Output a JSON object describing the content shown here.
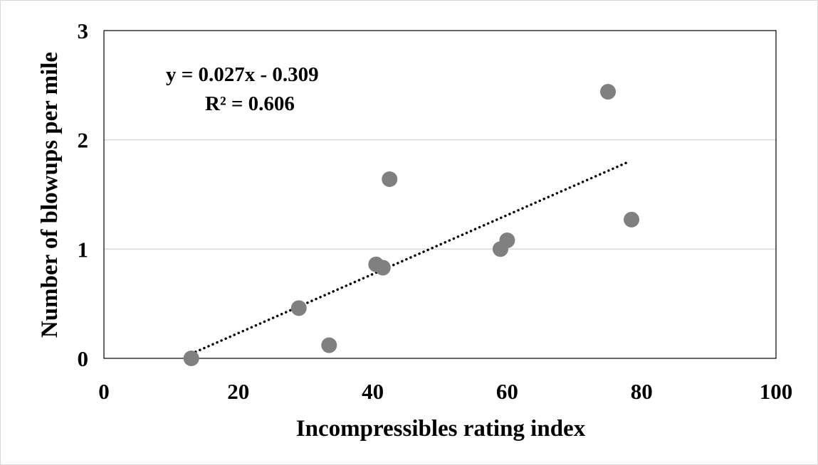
{
  "chart_data": {
    "type": "scatter",
    "title": "",
    "xlabel": "Incompressibles rating index",
    "ylabel": "Number of blowups per mile",
    "xlim": [
      0,
      100
    ],
    "ylim": [
      0,
      3
    ],
    "x_ticks": [
      "0",
      "20",
      "40",
      "60",
      "80",
      "100"
    ],
    "y_ticks": [
      "0",
      "1",
      "2",
      "3"
    ],
    "grid": "horizontal",
    "series": [
      {
        "points": [
          {
            "x": 13,
            "y": 0.0
          },
          {
            "x": 29,
            "y": 0.46
          },
          {
            "x": 33.5,
            "y": 0.12
          },
          {
            "x": 40.5,
            "y": 0.86
          },
          {
            "x": 41.5,
            "y": 0.83
          },
          {
            "x": 42.5,
            "y": 1.64
          },
          {
            "x": 59,
            "y": 1.0
          },
          {
            "x": 60,
            "y": 1.08
          },
          {
            "x": 75,
            "y": 2.44
          },
          {
            "x": 78.5,
            "y": 1.27
          }
        ],
        "color": "#808080"
      }
    ],
    "trendline": {
      "type": "linear",
      "slope": 0.027,
      "intercept": -0.309,
      "x_range": [
        13,
        78
      ],
      "equation": "y = 0.027x - 0.309",
      "r_squared": "R² = 0.606"
    }
  }
}
